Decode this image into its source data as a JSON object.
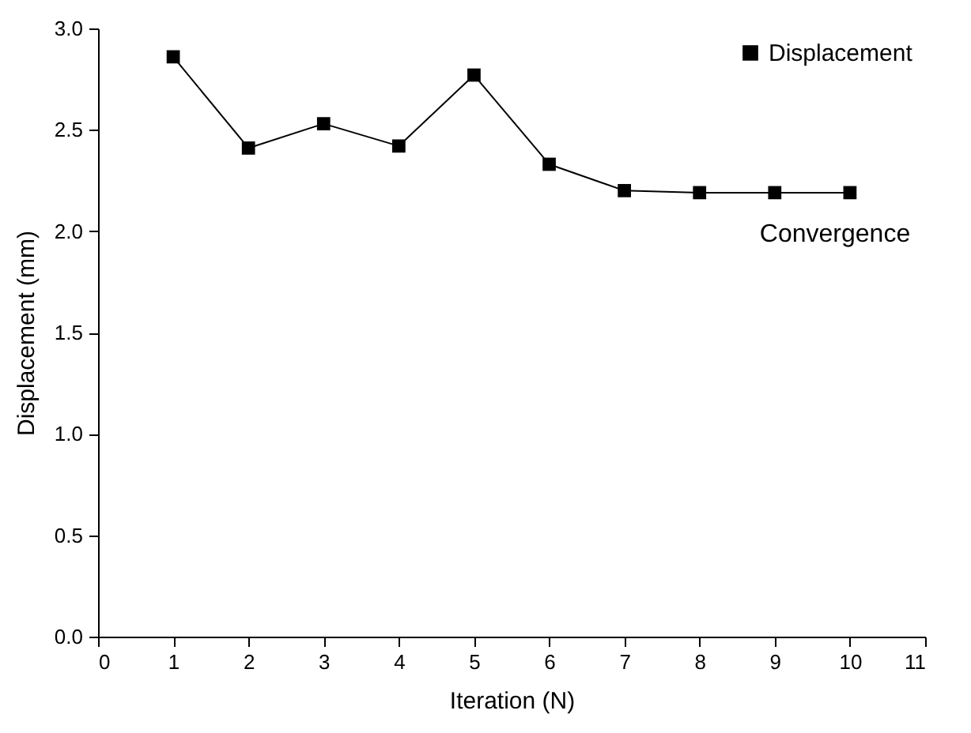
{
  "chart_data": {
    "type": "line",
    "xlabel": "Iteration (N)",
    "ylabel": "Displacement (mm)",
    "x": [
      1,
      2,
      3,
      4,
      5,
      6,
      7,
      8,
      9,
      10
    ],
    "series": [
      {
        "name": "Displacement",
        "color": "#000000",
        "values": [
          2.86,
          2.41,
          2.53,
          2.42,
          2.77,
          2.33,
          2.2,
          2.19,
          2.19,
          2.19
        ]
      }
    ],
    "xlim": [
      0,
      11
    ],
    "xticks": [
      0,
      1,
      2,
      3,
      4,
      5,
      6,
      7,
      8,
      9,
      10,
      11
    ],
    "ylim": [
      0,
      3.0
    ],
    "yticks": [
      {
        "value": 0,
        "label": "0.0"
      },
      {
        "value": 0.5,
        "label": "0.5"
      },
      {
        "value": 1,
        "label": "1.0"
      },
      {
        "value": 1.5,
        "label": "1.5"
      },
      {
        "value": 2,
        "label": "2.0"
      },
      {
        "value": 2.5,
        "label": "2.5"
      },
      {
        "value": 3,
        "label": "3.0"
      }
    ],
    "annotations": [
      "Convergence"
    ],
    "legend": "top right",
    "marker": "square",
    "line_style": "solid",
    "grid": false
  }
}
